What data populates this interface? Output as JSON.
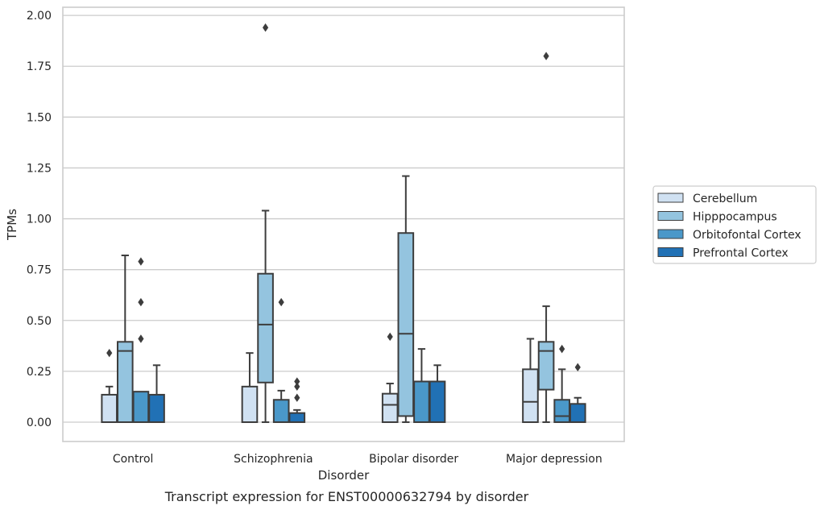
{
  "chart_data": {
    "type": "box",
    "caption": "Transcript expression for ENST00000632794 by disorder",
    "xlabel": "Disorder",
    "ylabel": "TPMs",
    "ylim": [
      -0.095,
      2.04
    ],
    "yticks": [
      "0.00",
      "0.25",
      "0.50",
      "0.75",
      "1.00",
      "1.25",
      "1.50",
      "1.75",
      "2.00"
    ],
    "ytick_values": [
      0,
      0.25,
      0.5,
      0.75,
      1.0,
      1.25,
      1.5,
      1.75,
      2.0
    ],
    "grid": "horizontal",
    "legend_position": "right",
    "categories": [
      "Control",
      "Schizophrenia",
      "Bipolar disorder",
      "Major depression"
    ],
    "series": [
      {
        "name": "Cerebellum",
        "color": "#d0e1f2",
        "boxes": [
          {
            "whisker_low": 0,
            "q1": 0,
            "median": 0,
            "q3": 0.135,
            "whisker_high": 0.175,
            "outliers": [
              0.34
            ]
          },
          {
            "whisker_low": 0,
            "q1": 0,
            "median": 0,
            "q3": 0.175,
            "whisker_high": 0.34,
            "outliers": []
          },
          {
            "whisker_low": 0,
            "q1": 0,
            "median": 0.085,
            "q3": 0.14,
            "whisker_high": 0.19,
            "outliers": [
              0.42
            ]
          },
          {
            "whisker_low": 0,
            "q1": 0,
            "median": 0.1,
            "q3": 0.26,
            "whisker_high": 0.41,
            "outliers": []
          }
        ]
      },
      {
        "name": "Hipppocampus",
        "color": "#94c4df",
        "boxes": [
          {
            "whisker_low": 0,
            "q1": 0,
            "median": 0.35,
            "q3": 0.395,
            "whisker_high": 0.82,
            "outliers": []
          },
          {
            "whisker_low": 0,
            "q1": 0.195,
            "median": 0.48,
            "q3": 0.73,
            "whisker_high": 1.04,
            "outliers": [
              1.94
            ]
          },
          {
            "whisker_low": 0,
            "q1": 0.03,
            "median": 0.435,
            "q3": 0.93,
            "whisker_high": 1.21,
            "outliers": []
          },
          {
            "whisker_low": 0,
            "q1": 0.16,
            "median": 0.35,
            "q3": 0.395,
            "whisker_high": 0.57,
            "outliers": [
              1.8
            ]
          }
        ]
      },
      {
        "name": "Orbitofontal Cortex",
        "color": "#4a98c9",
        "boxes": [
          {
            "whisker_low": 0,
            "q1": 0,
            "median": 0,
            "q3": 0.15,
            "whisker_high": 0.15,
            "outliers": [
              0.41,
              0.59,
              0.79
            ]
          },
          {
            "whisker_low": 0,
            "q1": 0,
            "median": 0,
            "q3": 0.11,
            "whisker_high": 0.155,
            "outliers": [
              0.59
            ]
          },
          {
            "whisker_low": 0,
            "q1": 0,
            "median": 0,
            "q3": 0.2,
            "whisker_high": 0.36,
            "outliers": []
          },
          {
            "whisker_low": 0,
            "q1": 0,
            "median": 0.03,
            "q3": 0.11,
            "whisker_high": 0.26,
            "outliers": [
              0.36
            ]
          }
        ]
      },
      {
        "name": "Prefrontal Cortex",
        "color": "#2171b5",
        "boxes": [
          {
            "whisker_low": 0,
            "q1": 0,
            "median": 0,
            "q3": 0.135,
            "whisker_high": 0.28,
            "outliers": []
          },
          {
            "whisker_low": 0,
            "q1": 0,
            "median": 0,
            "q3": 0.045,
            "whisker_high": 0.06,
            "outliers": [
              0.12,
              0.175,
              0.2
            ]
          },
          {
            "whisker_low": 0,
            "q1": 0,
            "median": 0,
            "q3": 0.2,
            "whisker_high": 0.28,
            "outliers": []
          },
          {
            "whisker_low": 0,
            "q1": 0,
            "median": 0,
            "q3": 0.09,
            "whisker_high": 0.12,
            "outliers": [
              0.27
            ]
          }
        ]
      }
    ]
  }
}
